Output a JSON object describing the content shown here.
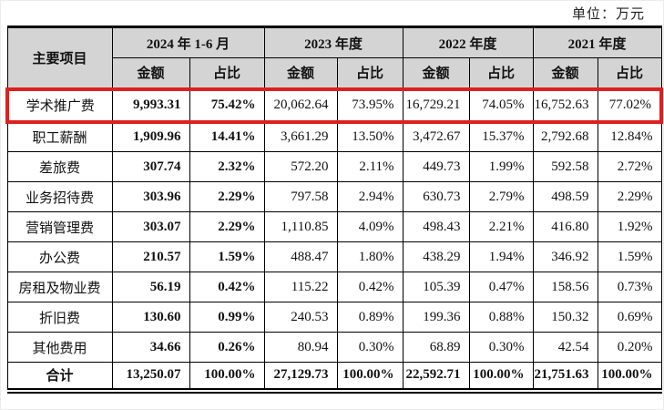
{
  "unit_label": "单位：万元",
  "colors": {
    "highlight_border": "#dd2021",
    "header_bg": "#d4d4d4",
    "table_border": "#000000",
    "page_bg": "#ffffff"
  },
  "table": {
    "corner_header": "主要项目",
    "period_headers": [
      "2024 年 1-6 月",
      "2023 年度",
      "2022 年度",
      "2021 年度"
    ],
    "sub_headers": {
      "amount": "金额",
      "ratio": "占比"
    },
    "rows": [
      {
        "label": "学术推广费",
        "highlighted": true,
        "values": [
          "9,993.31",
          "75.42%",
          "20,062.64",
          "73.95%",
          "16,729.21",
          "74.05%",
          "16,752.63",
          "77.02%"
        ]
      },
      {
        "label": "职工薪酬",
        "highlighted": false,
        "values": [
          "1,909.96",
          "14.41%",
          "3,661.29",
          "13.50%",
          "3,472.67",
          "15.37%",
          "2,792.68",
          "12.84%"
        ]
      },
      {
        "label": "差旅费",
        "highlighted": false,
        "values": [
          "307.74",
          "2.32%",
          "572.20",
          "2.11%",
          "449.73",
          "1.99%",
          "592.58",
          "2.72%"
        ]
      },
      {
        "label": "业务招待费",
        "highlighted": false,
        "values": [
          "303.96",
          "2.29%",
          "797.58",
          "2.94%",
          "630.73",
          "2.79%",
          "498.59",
          "2.29%"
        ]
      },
      {
        "label": "营销管理费",
        "highlighted": false,
        "values": [
          "303.07",
          "2.29%",
          "1,110.85",
          "4.09%",
          "498.43",
          "2.21%",
          "416.80",
          "1.92%"
        ]
      },
      {
        "label": "办公费",
        "highlighted": false,
        "values": [
          "210.57",
          "1.59%",
          "488.47",
          "1.80%",
          "438.29",
          "1.94%",
          "346.92",
          "1.59%"
        ]
      },
      {
        "label": "房租及物业费",
        "highlighted": false,
        "values": [
          "56.19",
          "0.42%",
          "115.22",
          "0.42%",
          "105.39",
          "0.47%",
          "158.56",
          "0.73%"
        ]
      },
      {
        "label": "折旧费",
        "highlighted": false,
        "values": [
          "130.60",
          "0.99%",
          "240.53",
          "0.89%",
          "199.36",
          "0.88%",
          "150.32",
          "0.69%"
        ]
      },
      {
        "label": "其他费用",
        "highlighted": false,
        "values": [
          "34.66",
          "0.26%",
          "80.94",
          "0.30%",
          "68.89",
          "0.30%",
          "42.54",
          "0.20%"
        ]
      }
    ],
    "total_row": {
      "label": "合计",
      "values": [
        "13,250.07",
        "100.00%",
        "27,129.73",
        "100.00%",
        "22,592.71",
        "100.00%",
        "21,751.63",
        "100.00%"
      ]
    }
  }
}
